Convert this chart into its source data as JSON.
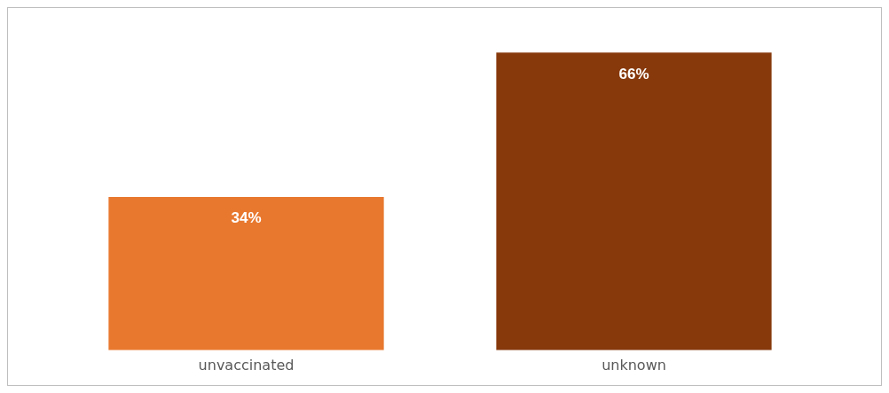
{
  "chart_data": {
    "type": "bar",
    "categories": [
      "unvaccinated",
      "unknown"
    ],
    "values": [
      34,
      66
    ],
    "colors": [
      "#e8782e",
      "#87390c"
    ],
    "data_labels": true,
    "value_labels": [
      "34%",
      "66%"
    ],
    "grid": false,
    "legend": false
  }
}
